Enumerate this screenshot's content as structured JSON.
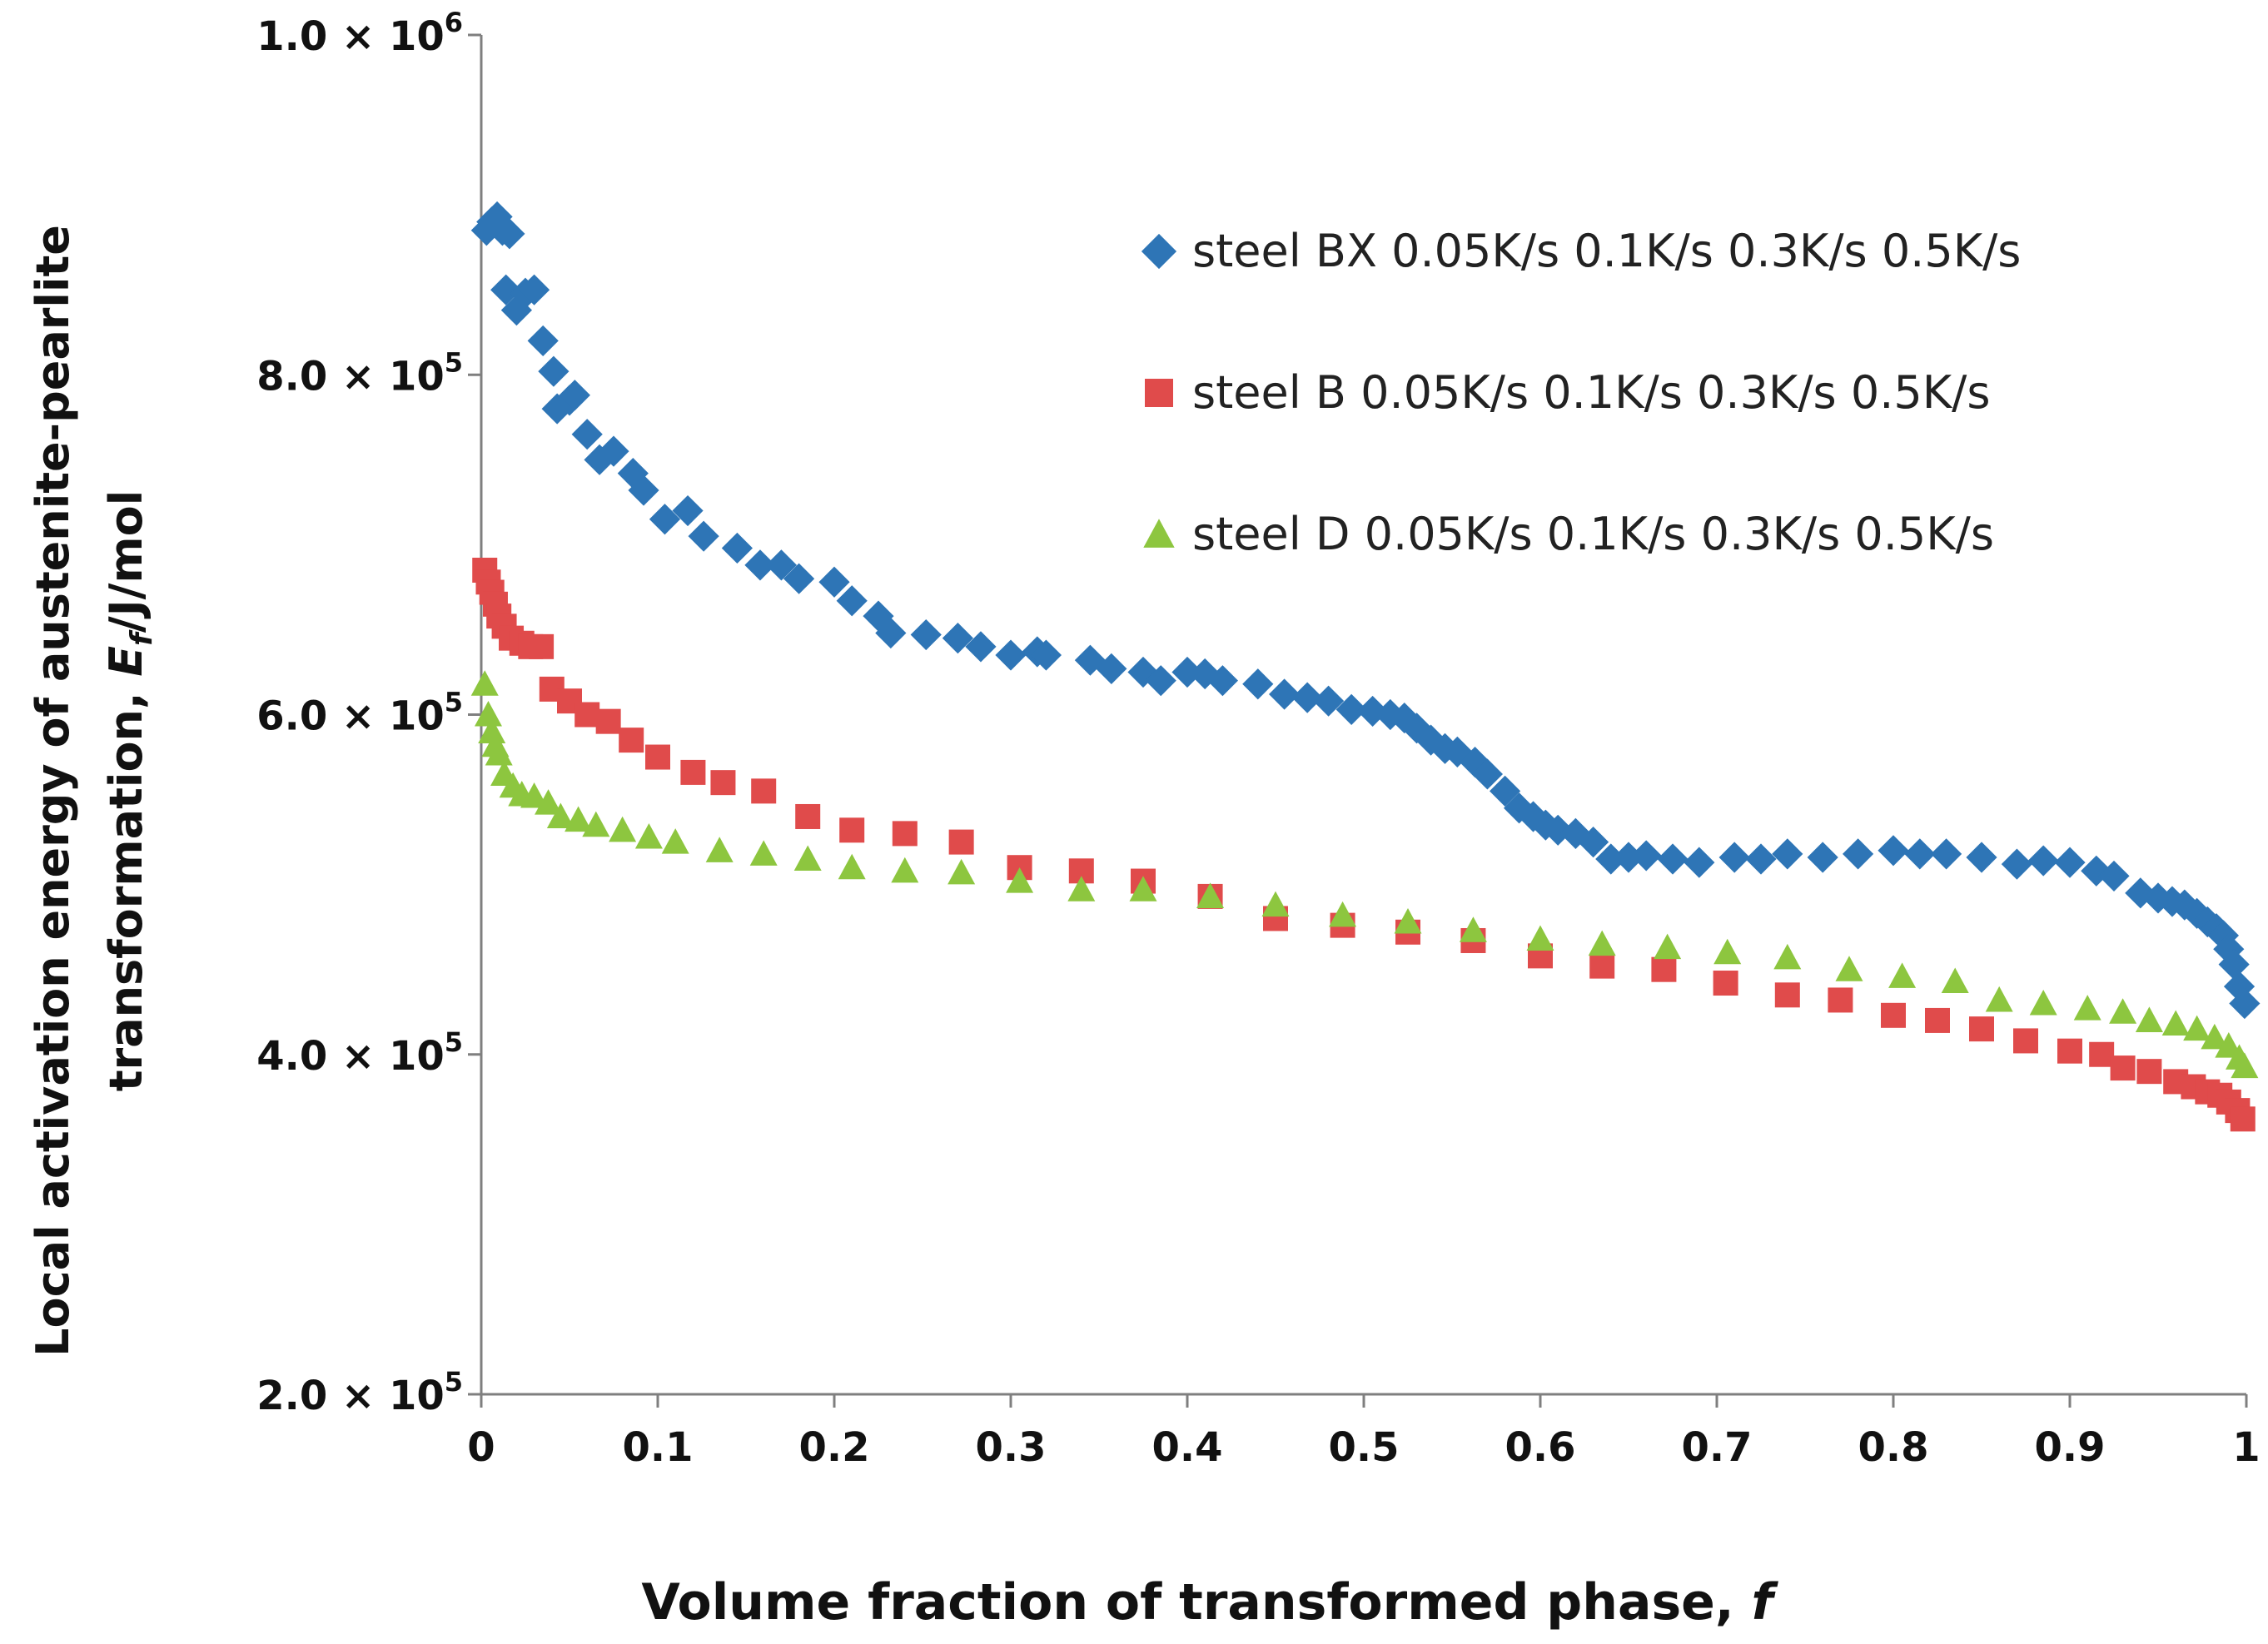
{
  "chart_data": {
    "type": "scatter",
    "title": "",
    "xlabel": "Volume fraction of transformed phase, ",
    "xlabel_italic": "f",
    "ylabel_line1": "Local activation energy of austenite-pearlite",
    "ylabel_line2_prefix": "transformation, ",
    "ylabel_symbol": "E",
    "ylabel_subscript": "f",
    "ylabel_units": "/J/mol",
    "xlim": [
      0,
      1
    ],
    "ylim": [
      200000,
      1000000
    ],
    "x_ticks": [
      0,
      0.1,
      0.2,
      0.3,
      0.4,
      0.5,
      0.6,
      0.7,
      0.8,
      0.9,
      1
    ],
    "x_tick_labels": [
      "0",
      "0.1",
      "0.2",
      "0.3",
      "0.4",
      "0.5",
      "0.6",
      "0.7",
      "0.8",
      "0.9",
      "1"
    ],
    "y_ticks": [
      {
        "value": 200000,
        "mantissa": "2.0",
        "times": "×",
        "base": "10",
        "exponent": "5"
      },
      {
        "value": 400000,
        "mantissa": "4.0",
        "times": "×",
        "base": "10",
        "exponent": "5"
      },
      {
        "value": 600000,
        "mantissa": "6.0",
        "times": "×",
        "base": "10",
        "exponent": "5"
      },
      {
        "value": 800000,
        "mantissa": "8.0",
        "times": "×",
        "base": "10",
        "exponent": "5"
      },
      {
        "value": 1000000,
        "mantissa": "1.0",
        "times": "×",
        "base": "10",
        "exponent": "6"
      }
    ],
    "grid": false,
    "legend_position": "top-right",
    "series": [
      {
        "name": "steel BX 0.05K/s 0.1K/s 0.3K/s 0.5K/s",
        "marker": "diamond",
        "color": "#2E75B6",
        "points": [
          [
            0.003,
            885000
          ],
          [
            0.006,
            890000
          ],
          [
            0.009,
            893000
          ],
          [
            0.012,
            885000
          ],
          [
            0.016,
            883000
          ],
          [
            0.014,
            850000
          ],
          [
            0.02,
            838000
          ],
          [
            0.025,
            848000
          ],
          [
            0.03,
            850000
          ],
          [
            0.035,
            820000
          ],
          [
            0.041,
            802000
          ],
          [
            0.043,
            780000
          ],
          [
            0.05,
            785000
          ],
          [
            0.053,
            788000
          ],
          [
            0.06,
            765000
          ],
          [
            0.067,
            750000
          ],
          [
            0.075,
            755000
          ],
          [
            0.086,
            742000
          ],
          [
            0.092,
            732000
          ],
          [
            0.104,
            715000
          ],
          [
            0.117,
            720000
          ],
          [
            0.126,
            705000
          ],
          [
            0.145,
            698000
          ],
          [
            0.158,
            688000
          ],
          [
            0.17,
            688000
          ],
          [
            0.18,
            680000
          ],
          [
            0.2,
            678000
          ],
          [
            0.21,
            667000
          ],
          [
            0.225,
            658000
          ],
          [
            0.232,
            648000
          ],
          [
            0.252,
            647000
          ],
          [
            0.27,
            645000
          ],
          [
            0.283,
            640000
          ],
          [
            0.3,
            635000
          ],
          [
            0.315,
            637000
          ],
          [
            0.32,
            635000
          ],
          [
            0.345,
            632000
          ],
          [
            0.357,
            627000
          ],
          [
            0.375,
            625000
          ],
          [
            0.385,
            620000
          ],
          [
            0.4,
            625000
          ],
          [
            0.41,
            624000
          ],
          [
            0.42,
            620000
          ],
          [
            0.44,
            618000
          ],
          [
            0.455,
            612000
          ],
          [
            0.468,
            610000
          ],
          [
            0.48,
            608000
          ],
          [
            0.493,
            603000
          ],
          [
            0.505,
            602000
          ],
          [
            0.515,
            600000
          ],
          [
            0.523,
            598000
          ],
          [
            0.53,
            592000
          ],
          [
            0.538,
            585000
          ],
          [
            0.546,
            580000
          ],
          [
            0.553,
            578000
          ],
          [
            0.563,
            572000
          ],
          [
            0.57,
            565000
          ],
          [
            0.58,
            555000
          ],
          [
            0.588,
            545000
          ],
          [
            0.596,
            540000
          ],
          [
            0.603,
            535000
          ],
          [
            0.61,
            532000
          ],
          [
            0.62,
            530000
          ],
          [
            0.63,
            525000
          ],
          [
            0.64,
            515000
          ],
          [
            0.65,
            516000
          ],
          [
            0.66,
            517000
          ],
          [
            0.675,
            515000
          ],
          [
            0.69,
            513000
          ],
          [
            0.71,
            516000
          ],
          [
            0.725,
            515000
          ],
          [
            0.74,
            518000
          ],
          [
            0.76,
            516000
          ],
          [
            0.78,
            518000
          ],
          [
            0.8,
            520000
          ],
          [
            0.815,
            518000
          ],
          [
            0.83,
            518000
          ],
          [
            0.85,
            516000
          ],
          [
            0.87,
            512000
          ],
          [
            0.885,
            514000
          ],
          [
            0.9,
            513000
          ],
          [
            0.915,
            508000
          ],
          [
            0.925,
            505000
          ],
          [
            0.94,
            495000
          ],
          [
            0.95,
            492000
          ],
          [
            0.958,
            490000
          ],
          [
            0.965,
            488000
          ],
          [
            0.972,
            483000
          ],
          [
            0.978,
            478000
          ],
          [
            0.983,
            474000
          ],
          [
            0.987,
            470000
          ],
          [
            0.99,
            462000
          ],
          [
            0.993,
            453000
          ],
          [
            0.996,
            440000
          ],
          [
            0.999,
            430000
          ]
        ]
      },
      {
        "name": "steel B 0.05K/s 0.1K/s 0.3K/s 0.5K/s",
        "marker": "square",
        "color": "#E04B4B",
        "points": [
          [
            0.002,
            685000
          ],
          [
            0.004,
            678000
          ],
          [
            0.006,
            672000
          ],
          [
            0.008,
            665000
          ],
          [
            0.01,
            658000
          ],
          [
            0.013,
            652000
          ],
          [
            0.017,
            645000
          ],
          [
            0.023,
            642000
          ],
          [
            0.028,
            640000
          ],
          [
            0.034,
            640000
          ],
          [
            0.04,
            615000
          ],
          [
            0.05,
            608000
          ],
          [
            0.06,
            600000
          ],
          [
            0.072,
            596000
          ],
          [
            0.085,
            585000
          ],
          [
            0.1,
            575000
          ],
          [
            0.12,
            566000
          ],
          [
            0.137,
            560000
          ],
          [
            0.16,
            555000
          ],
          [
            0.185,
            540000
          ],
          [
            0.21,
            532000
          ],
          [
            0.24,
            530000
          ],
          [
            0.272,
            525000
          ],
          [
            0.305,
            510000
          ],
          [
            0.34,
            508000
          ],
          [
            0.375,
            502000
          ],
          [
            0.413,
            493000
          ],
          [
            0.45,
            480000
          ],
          [
            0.488,
            476000
          ],
          [
            0.525,
            472000
          ],
          [
            0.562,
            467000
          ],
          [
            0.6,
            458000
          ],
          [
            0.635,
            452000
          ],
          [
            0.67,
            450000
          ],
          [
            0.705,
            442000
          ],
          [
            0.74,
            435000
          ],
          [
            0.77,
            432000
          ],
          [
            0.8,
            423000
          ],
          [
            0.825,
            420000
          ],
          [
            0.85,
            415000
          ],
          [
            0.875,
            408000
          ],
          [
            0.9,
            402000
          ],
          [
            0.918,
            400000
          ],
          [
            0.93,
            392000
          ],
          [
            0.945,
            390000
          ],
          [
            0.96,
            384000
          ],
          [
            0.97,
            381000
          ],
          [
            0.978,
            378000
          ],
          [
            0.985,
            376000
          ],
          [
            0.99,
            372000
          ],
          [
            0.995,
            367000
          ],
          [
            0.998,
            362000
          ]
        ]
      },
      {
        "name": "steel D 0.05K/s 0.1K/s 0.3K/s 0.5K/s",
        "marker": "triangle",
        "color": "#8DC63F",
        "points": [
          [
            0.002,
            618000
          ],
          [
            0.004,
            600000
          ],
          [
            0.006,
            590000
          ],
          [
            0.008,
            582000
          ],
          [
            0.01,
            577000
          ],
          [
            0.013,
            565000
          ],
          [
            0.018,
            558000
          ],
          [
            0.023,
            553000
          ],
          [
            0.03,
            552000
          ],
          [
            0.038,
            548000
          ],
          [
            0.045,
            540000
          ],
          [
            0.055,
            538000
          ],
          [
            0.065,
            535000
          ],
          [
            0.08,
            532000
          ],
          [
            0.095,
            528000
          ],
          [
            0.11,
            525000
          ],
          [
            0.135,
            520000
          ],
          [
            0.16,
            518000
          ],
          [
            0.185,
            515000
          ],
          [
            0.21,
            510000
          ],
          [
            0.24,
            508000
          ],
          [
            0.272,
            507000
          ],
          [
            0.305,
            502000
          ],
          [
            0.34,
            497000
          ],
          [
            0.375,
            497000
          ],
          [
            0.413,
            493000
          ],
          [
            0.45,
            488000
          ],
          [
            0.488,
            482000
          ],
          [
            0.525,
            478000
          ],
          [
            0.562,
            473000
          ],
          [
            0.6,
            468000
          ],
          [
            0.635,
            465000
          ],
          [
            0.672,
            463000
          ],
          [
            0.706,
            460000
          ],
          [
            0.74,
            457000
          ],
          [
            0.775,
            450000
          ],
          [
            0.805,
            446000
          ],
          [
            0.835,
            443000
          ],
          [
            0.86,
            432000
          ],
          [
            0.885,
            430000
          ],
          [
            0.91,
            427000
          ],
          [
            0.93,
            425000
          ],
          [
            0.945,
            420000
          ],
          [
            0.96,
            418000
          ],
          [
            0.972,
            415000
          ],
          [
            0.982,
            410000
          ],
          [
            0.99,
            405000
          ],
          [
            0.996,
            398000
          ],
          [
            0.999,
            393000
          ]
        ]
      }
    ]
  }
}
